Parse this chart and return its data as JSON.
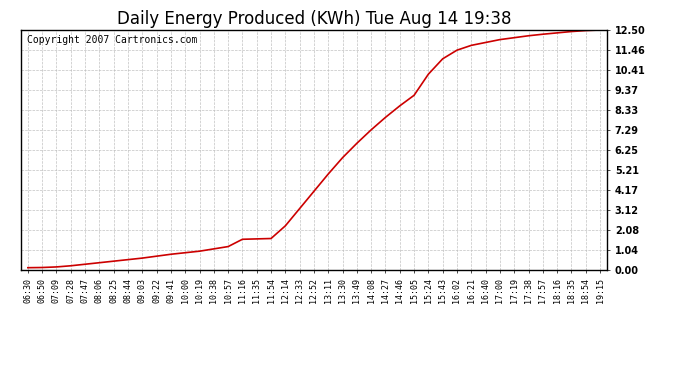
{
  "title": "Daily Energy Produced (KWh) Tue Aug 14 19:38",
  "copyright_text": "Copyright 2007 Cartronics.com",
  "line_color": "#cc0000",
  "background_color": "#ffffff",
  "plot_bg_color": "#ffffff",
  "grid_color": "#bbbbbb",
  "yticks": [
    0.0,
    1.04,
    2.08,
    3.12,
    4.17,
    5.21,
    6.25,
    7.29,
    8.33,
    9.37,
    10.41,
    11.46,
    12.5
  ],
  "ytick_labels": [
    "0.00",
    "1.04",
    "2.08",
    "3.12",
    "4.17",
    "5.21",
    "6.25",
    "7.29",
    "8.33",
    "9.37",
    "10.41",
    "11.46",
    "12.50"
  ],
  "ylim": [
    0.0,
    12.5
  ],
  "x_labels": [
    "06:30",
    "06:50",
    "07:09",
    "07:28",
    "07:47",
    "08:06",
    "08:25",
    "08:44",
    "09:03",
    "09:22",
    "09:41",
    "10:00",
    "10:19",
    "10:38",
    "10:57",
    "11:16",
    "11:35",
    "11:54",
    "12:14",
    "12:33",
    "12:52",
    "13:11",
    "13:30",
    "13:49",
    "14:08",
    "14:27",
    "14:46",
    "15:05",
    "15:24",
    "15:43",
    "16:02",
    "16:21",
    "16:40",
    "17:00",
    "17:19",
    "17:38",
    "17:57",
    "18:16",
    "18:35",
    "18:54",
    "19:15"
  ],
  "y_values": [
    0.12,
    0.13,
    0.16,
    0.22,
    0.3,
    0.38,
    0.46,
    0.54,
    0.62,
    0.72,
    0.82,
    0.9,
    0.98,
    1.1,
    1.22,
    1.6,
    1.62,
    1.64,
    2.3,
    3.2,
    4.1,
    5.0,
    5.85,
    6.6,
    7.3,
    7.95,
    8.55,
    9.1,
    10.2,
    11.0,
    11.45,
    11.7,
    11.85,
    12.0,
    12.1,
    12.2,
    12.28,
    12.35,
    12.42,
    12.47,
    12.5
  ],
  "title_fontsize": 12,
  "tick_fontsize": 7,
  "xtick_fontsize": 6,
  "copyright_fontsize": 7
}
